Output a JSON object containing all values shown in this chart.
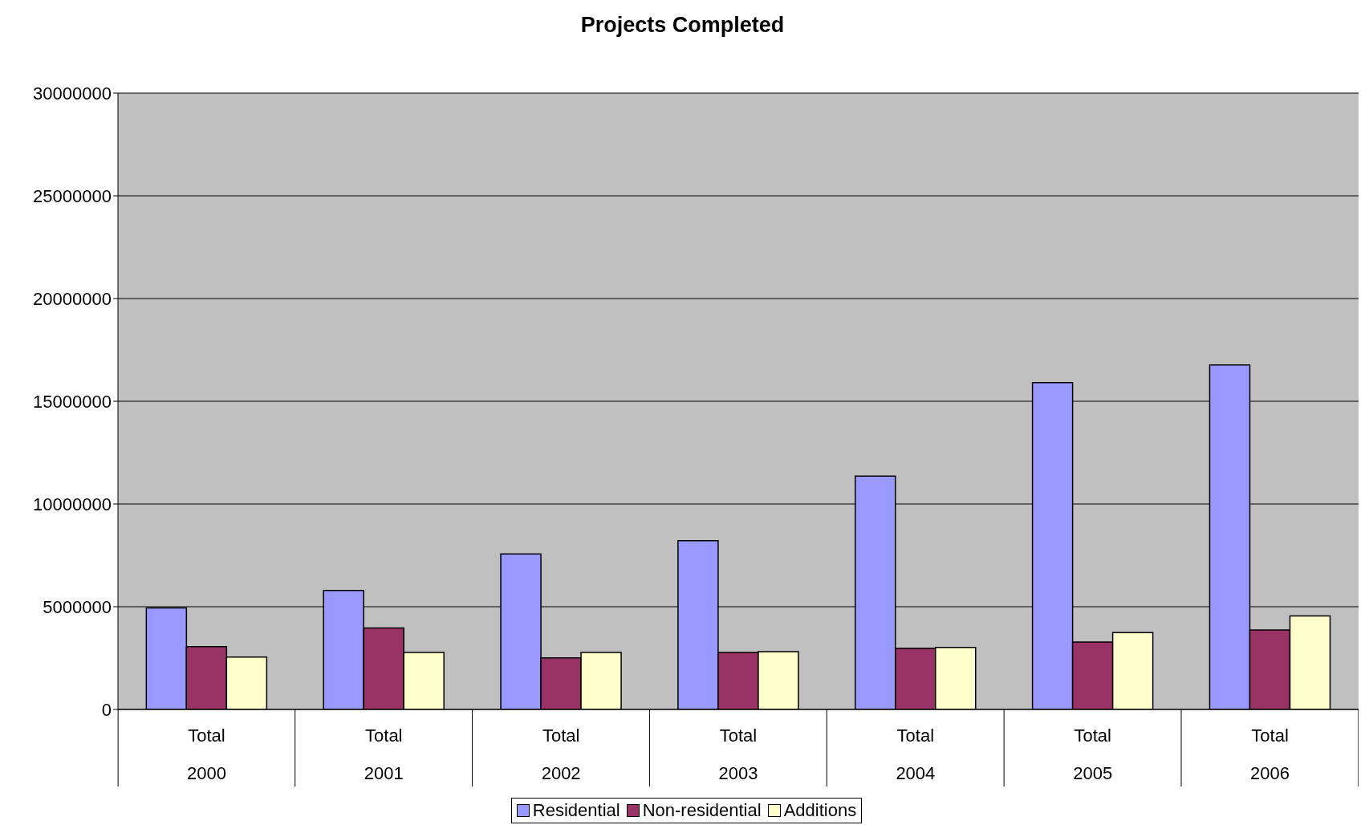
{
  "chart_data": {
    "type": "bar",
    "title": "Projects Completed",
    "categories": [
      "Total\n2000",
      "Total\n2001",
      "Total\n2002",
      "Total\n2003",
      "Total\n2004",
      "Total\n2005",
      "Total\n2006"
    ],
    "series": [
      {
        "name": "Residential",
        "color": "#9999ff",
        "values": [
          4940000,
          5790000,
          7570000,
          8210000,
          11360000,
          15910000,
          16770000
        ]
      },
      {
        "name": "Non-residential",
        "color": "#993366",
        "values": [
          3060000,
          3960000,
          2510000,
          2770000,
          2980000,
          3280000,
          3870000
        ]
      },
      {
        "name": "Additions",
        "color": "#ffffcc",
        "values": [
          2550000,
          2770000,
          2770000,
          2810000,
          3020000,
          3740000,
          4550000
        ]
      }
    ],
    "ylim": [
      0,
      30000000
    ],
    "yticks": [
      0,
      5000000,
      10000000,
      15000000,
      20000000,
      25000000,
      30000000
    ],
    "grid": "y",
    "legend": "bottom"
  }
}
